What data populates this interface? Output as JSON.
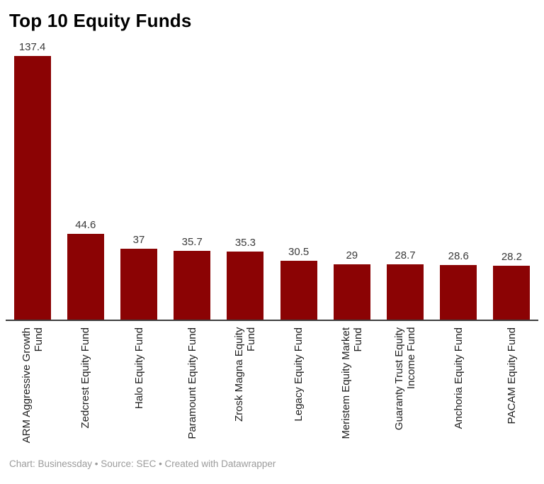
{
  "header": {
    "title": "Top 10 Equity Funds"
  },
  "footer": {
    "text": "Chart: Businessday • Source: SEC • Created with Datawrapper"
  },
  "colors": {
    "bar": "#8b0304",
    "axis": "#3f3f3f",
    "title": "#000000",
    "value_label": "#3a3a3a",
    "category_label": "#1f1f1f",
    "footer_text": "#9b9b9b",
    "background": "#ffffff"
  },
  "chart_data": {
    "type": "bar",
    "title": "Top 10 Equity Funds",
    "orientation": "vertical",
    "categories": [
      "ARM Aggressive Growth\nFund",
      "Zedcrest Equity Fund",
      "Halo Equity Fund",
      "Paramount Equity Fund",
      "Zrosk Magna Equity Fund",
      "Legacy Equity Fund",
      "Meristem Equity Market\nFund",
      "Guaranty Trust Equity\nIncome Fund",
      "Anchoria Equity Fund",
      "PACAM Equity Fund"
    ],
    "values": [
      137.4,
      44.6,
      37,
      35.7,
      35.3,
      30.5,
      29,
      28.7,
      28.6,
      28.2
    ],
    "value_labels": [
      "137.4",
      "44.6",
      "37",
      "35.7",
      "35.3",
      "30.5",
      "29",
      "28.7",
      "28.6",
      "28.2"
    ],
    "xlabel": "",
    "ylabel": "",
    "ylim": [
      0,
      140
    ],
    "grid": false,
    "legend_position": "none",
    "bar_color": "#8b0304",
    "category_label_rotation_deg": 90,
    "source_note": "Chart: Businessday • Source: SEC • Created with Datawrapper"
  }
}
